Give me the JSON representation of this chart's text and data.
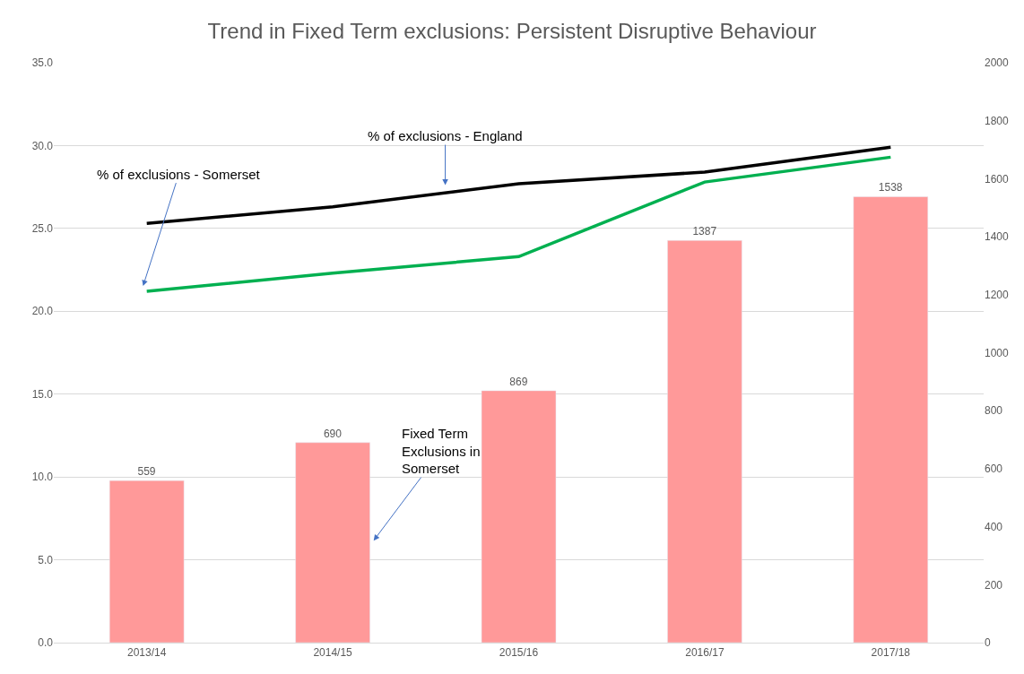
{
  "chart_data": {
    "type": "line",
    "title": "Trend in Fixed Term exclusions: Persistent Disruptive Behaviour",
    "categories": [
      "2013/14",
      "2014/15",
      "2015/16",
      "2016/17",
      "2017/18"
    ],
    "series": [
      {
        "type": "bar",
        "axis": "y2",
        "color": "#ff9999",
        "values": [
          559,
          690,
          869,
          1387,
          1538
        ],
        "value_labels": [
          "559",
          "690",
          "869",
          "1387",
          "1538"
        ]
      },
      {
        "color": "#000000",
        "values": [
          25.3,
          26.3,
          27.7,
          28.4,
          29.9
        ]
      },
      {
        "color": "#00b050",
        "values": [
          21.2,
          22.3,
          23.3,
          27.8,
          29.3
        ]
      }
    ],
    "ylim": [
      0,
      35
    ],
    "yticks": [
      {
        "value": 0,
        "label": "0.0"
      },
      {
        "value": 5,
        "label": "5.0"
      },
      {
        "value": 10,
        "label": "10.0"
      },
      {
        "value": 15,
        "label": "15.0"
      },
      {
        "value": 20,
        "label": "20.0"
      },
      {
        "value": 25,
        "label": "25.0"
      },
      {
        "value": 30,
        "label": "30.0"
      },
      {
        "value": 35,
        "label": "35.0"
      }
    ],
    "y2lim": [
      0,
      2000
    ],
    "y2ticks": [
      0,
      200,
      400,
      600,
      800,
      1000,
      1200,
      1400,
      1600,
      1800,
      2000
    ],
    "annotations": [
      "% of exclusions - England",
      "% of exclusions - Somerset",
      "Fixed Term\nExclusions in\nSomerset"
    ],
    "grid": "y",
    "marker": "none",
    "line_style": "solid"
  }
}
